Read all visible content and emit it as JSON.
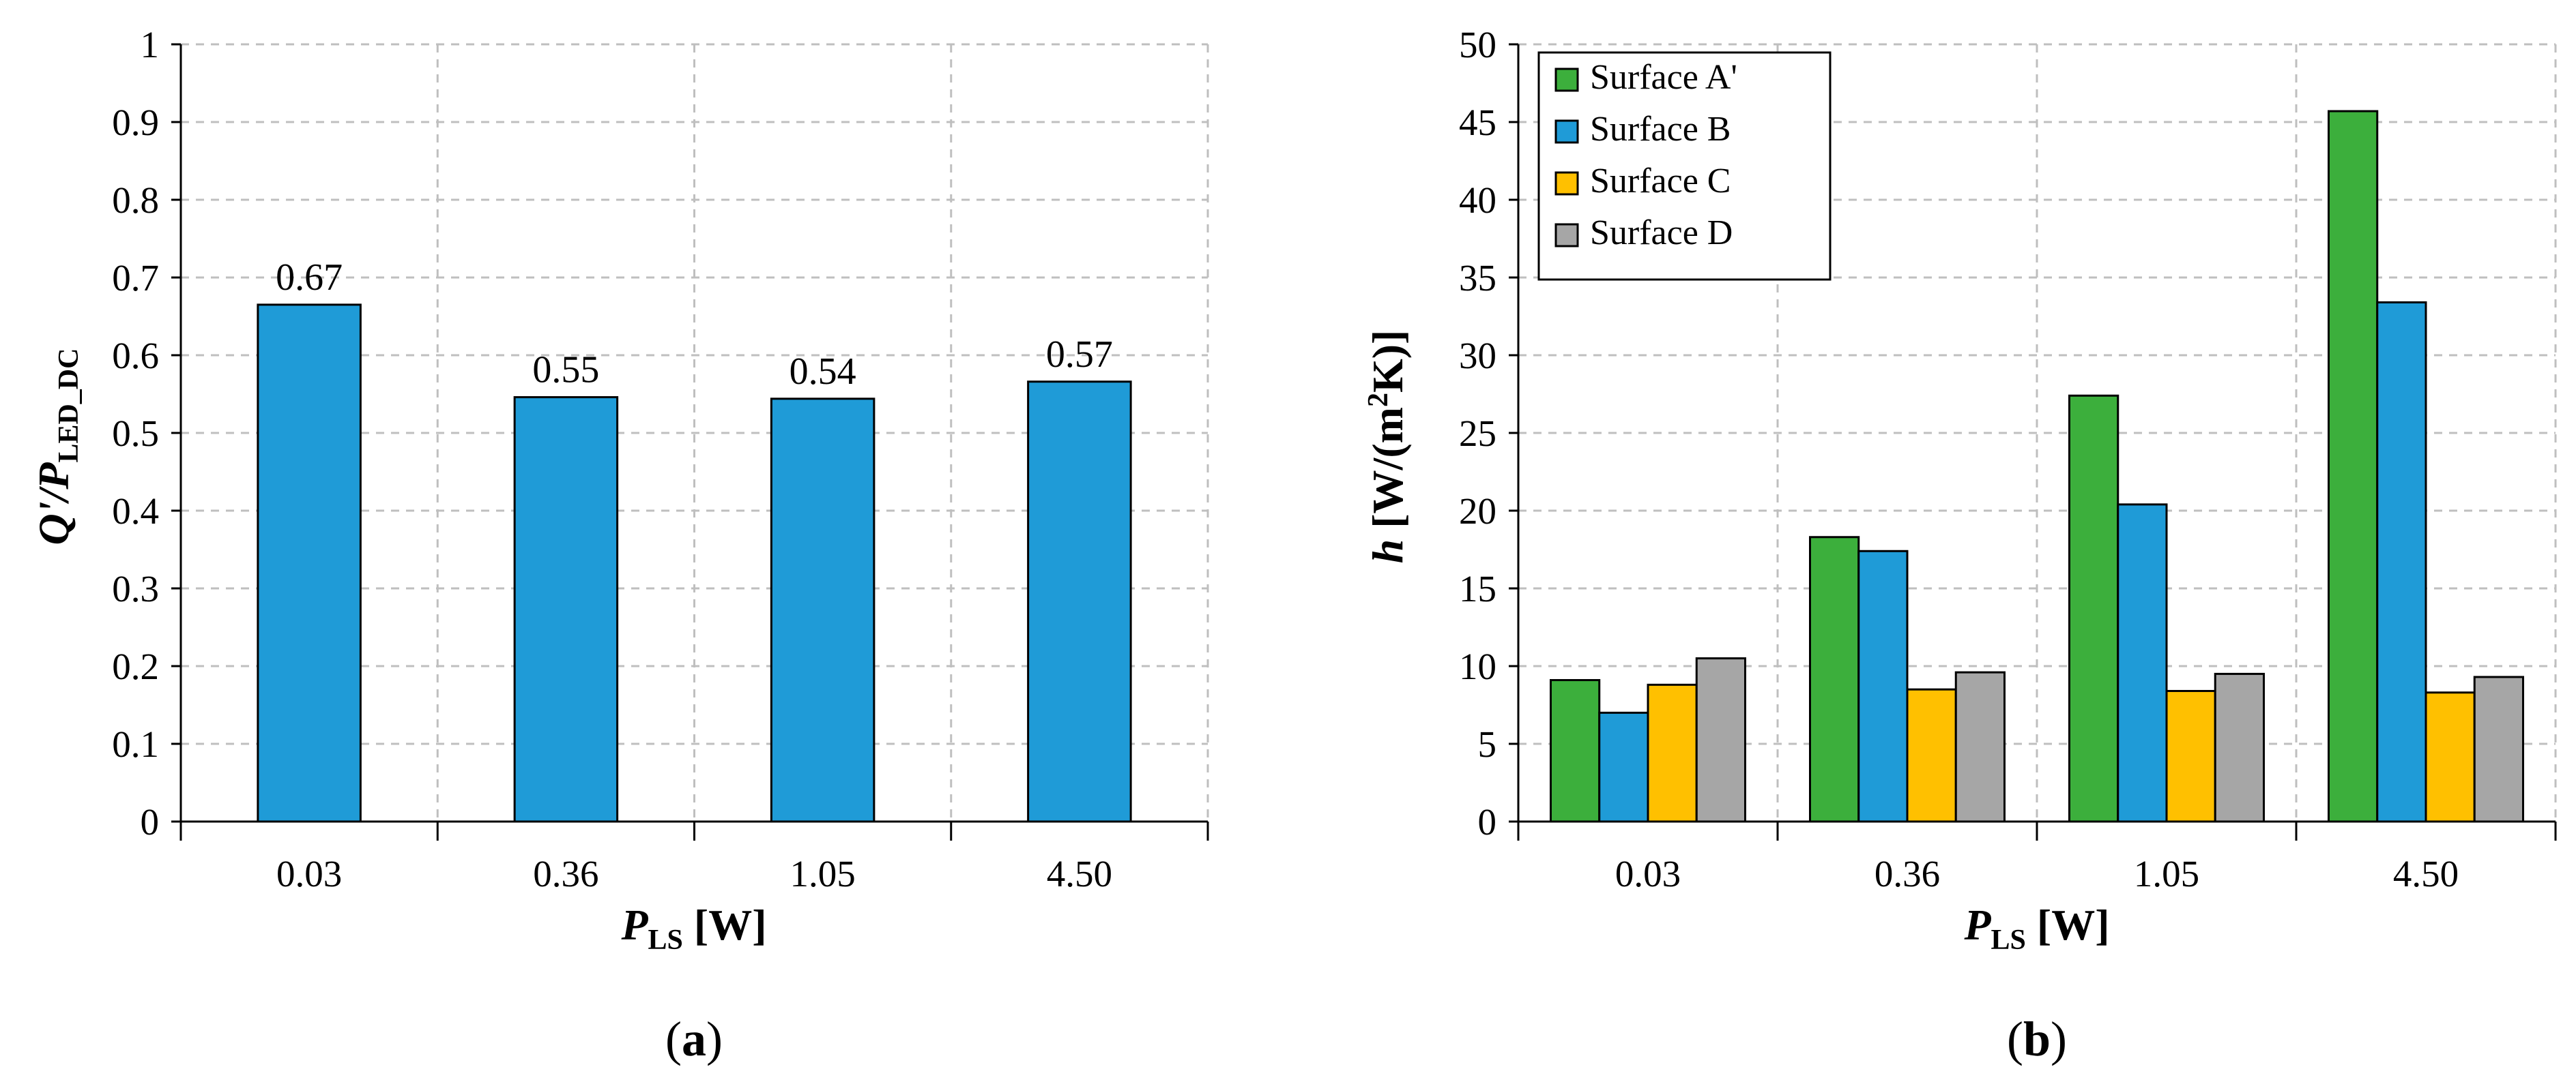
{
  "chart_data": [
    {
      "type": "bar",
      "panel_label": "a",
      "title": "",
      "categories": [
        "0.03",
        "0.36",
        "1.05",
        "4.50"
      ],
      "series": [
        {
          "name": "Q'/P_LED_DC",
          "values": [
            0.665,
            0.546,
            0.544,
            0.566
          ],
          "color": "#1F9BD7"
        }
      ],
      "data_labels": [
        "0.67",
        "0.55",
        "0.54",
        "0.57"
      ],
      "ylim": [
        0,
        1
      ],
      "yticks": [
        "0",
        "0.1",
        "0.2",
        "0.3",
        "0.4",
        "0.5",
        "0.6",
        "0.7",
        "0.8",
        "0.9",
        "1"
      ],
      "ylabel": {
        "main": "Q'/P",
        "sub": "LED_DC"
      },
      "xlabel": {
        "main": "P",
        "sub": "LS",
        "unit": " [W]"
      },
      "grid": true
    },
    {
      "type": "bar",
      "panel_label": "b",
      "title": "",
      "categories": [
        "0.03",
        "0.36",
        "1.05",
        "4.50"
      ],
      "series": [
        {
          "name": "Surface A'",
          "values": [
            9.1,
            18.3,
            27.4,
            45.7
          ],
          "color": "#3CAF3C"
        },
        {
          "name": "Surface B",
          "values": [
            7.0,
            17.4,
            20.4,
            33.4
          ],
          "color": "#1F9BD7"
        },
        {
          "name": "Surface C",
          "values": [
            8.8,
            8.5,
            8.4,
            8.3
          ],
          "color": "#FFC000"
        },
        {
          "name": "Surface D",
          "values": [
            10.5,
            9.6,
            9.5,
            9.3
          ],
          "color": "#A6A6A6"
        }
      ],
      "ylim": [
        0,
        50
      ],
      "yticks": [
        "0",
        "5",
        "10",
        "15",
        "20",
        "25",
        "30",
        "35",
        "40",
        "45",
        "50"
      ],
      "ylabel": {
        "main": "h",
        "unit": " [W/(m",
        "sup": "2",
        "unit_end": "K)]"
      },
      "xlabel": {
        "main": "P",
        "sub": "LS",
        "unit": " [W]"
      },
      "legend": "top-left",
      "grid": true
    }
  ]
}
